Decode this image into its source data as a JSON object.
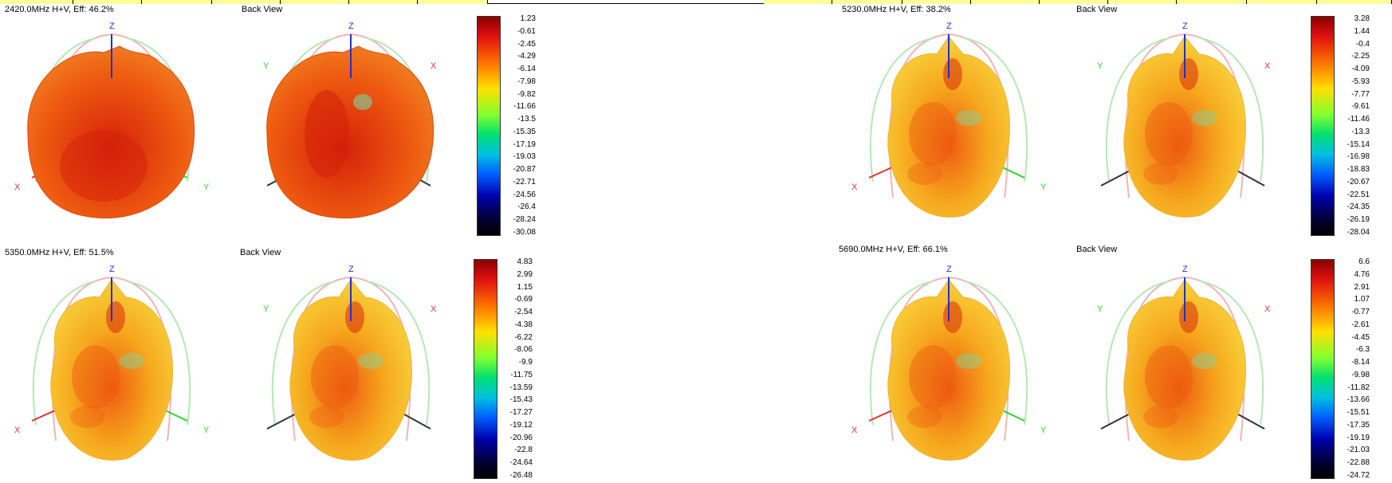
{
  "panels": [
    {
      "title": "2420.0MHz H+V, Eff: 46.2%",
      "back_title": "Back View",
      "axis": {
        "x": "X",
        "y": "Y",
        "z": "Z"
      },
      "scale": [
        "1.23",
        "-0.61",
        "-2.45",
        "-4.29",
        "-6.14",
        "-7.98",
        "-9.82",
        "-11.66",
        "-13.5",
        "-15.35",
        "-17.19",
        "-19.03",
        "-20.87",
        "-22.71",
        "-24.56",
        "-26.4",
        "-28.24",
        "-30.08"
      ]
    },
    {
      "title": "5230.0MHz H+V, Eff: 38.2%",
      "back_title": "Back View",
      "axis": {
        "x": "X",
        "y": "Y",
        "z": "Z"
      },
      "scale": [
        "3.28",
        "1.44",
        "-0.4",
        "-2.25",
        "-4.09",
        "-5.93",
        "-7.77",
        "-9.61",
        "-11.46",
        "-13.3",
        "-15.14",
        "-16.98",
        "-18.83",
        "-20.67",
        "-22.51",
        "-24.35",
        "-26.19",
        "-28.04"
      ]
    },
    {
      "title": "5350.0MHz H+V, Eff: 51.5%",
      "back_title": "Back View",
      "axis": {
        "x": "X",
        "y": "Y",
        "z": "Z"
      },
      "scale": [
        "4.83",
        "2.99",
        "1.15",
        "-0.69",
        "-2.54",
        "-4.38",
        "-6.22",
        "-8.06",
        "-9.9",
        "-11.75",
        "-13.59",
        "-15.43",
        "-17.27",
        "-19.12",
        "-20.96",
        "-22.8",
        "-24.64",
        "-26.48"
      ]
    },
    {
      "title": "5690.0MHz H+V, Eff: 66.1%",
      "back_title": "Back View",
      "axis": {
        "x": "X",
        "y": "Y",
        "z": "Z"
      },
      "scale": [
        "6.6",
        "4.76",
        "2.91",
        "1.07",
        "-0.77",
        "-2.61",
        "-4.45",
        "-6.3",
        "-8.14",
        "-9.98",
        "-11.82",
        "-13.66",
        "-15.51",
        "-17.35",
        "-19.19",
        "-21.03",
        "-22.88",
        "-24.72"
      ]
    }
  ],
  "colors": {
    "surface_main": "#ee5a10",
    "surface_hot": "#d4200a",
    "surface_mid": "#f6a81e",
    "surface_light": "#f8d03a",
    "surface_cool": "#7fd6a0",
    "axis_x": "#e03030",
    "axis_y": "#30d030",
    "axis_z": "#2030d0",
    "axis_dark": "#333333",
    "cut_red": "#f4b4b4",
    "cut_green": "#b4e8b4",
    "header_yellow": "#ffff99"
  }
}
